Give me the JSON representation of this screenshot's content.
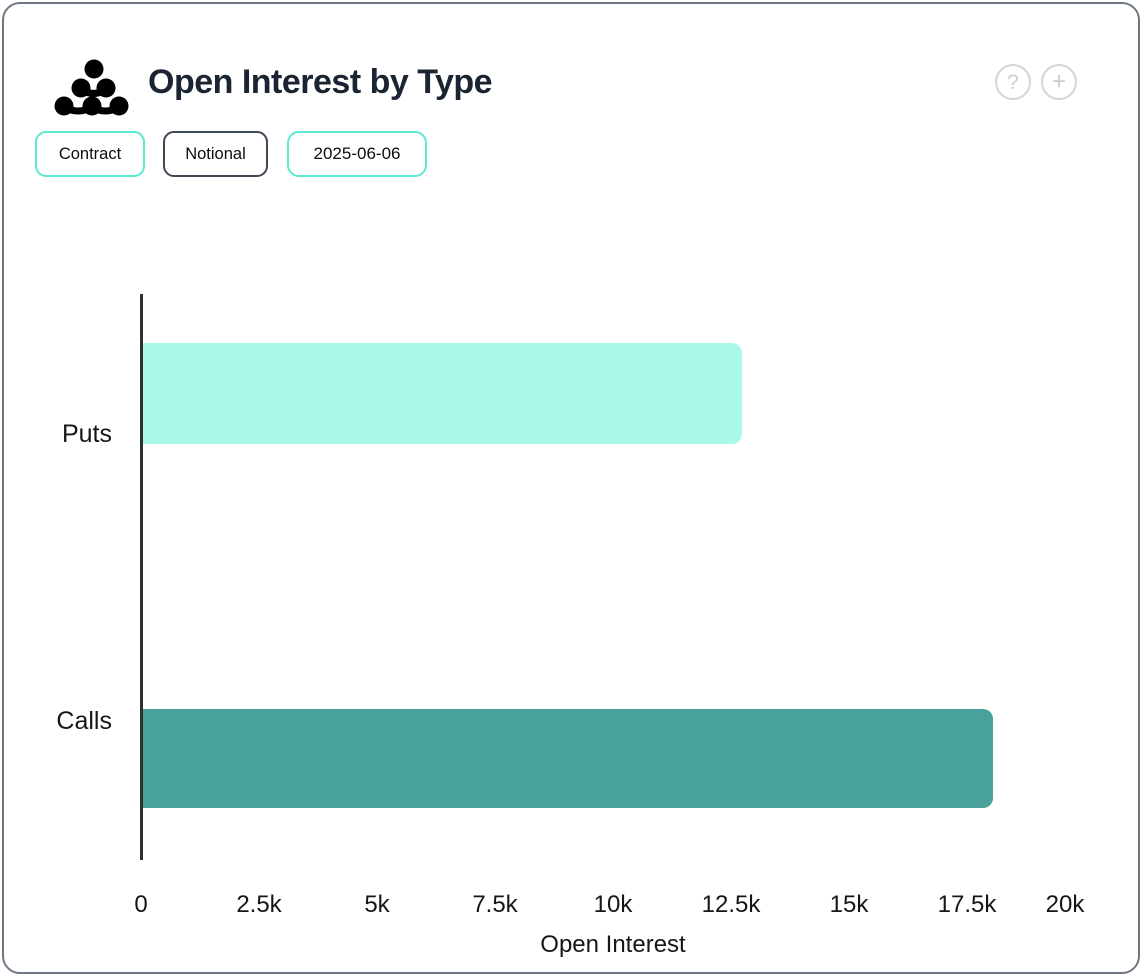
{
  "header": {
    "title": "Open Interest by Type",
    "help_glyph": "?",
    "plus_glyph": "+"
  },
  "toolbar": {
    "contract_label": "Contract",
    "notional_label": "Notional",
    "date_label": "2025-06-06"
  },
  "colors": {
    "accent_teal_border": "#5ce9d1",
    "dark_pill_border": "#3f4857",
    "puts_bar": "#a9f9e9",
    "calls_bar": "#48a29b",
    "title_text": "#1b2433",
    "icon_gray": "#d4d4d4",
    "axis_line": "#2f2f2f",
    "frame_border": "#6f7785"
  },
  "chart_data": {
    "type": "bar",
    "orientation": "horizontal",
    "categories": [
      "Puts",
      "Calls"
    ],
    "values": [
      12700,
      18000
    ],
    "series_colors": [
      "#a9f9e9",
      "#48a29b"
    ],
    "title": "Open Interest by Type",
    "xlabel": "Open Interest",
    "ylabel": "",
    "xlim": [
      0,
      20000
    ],
    "xtick_labels": [
      "0",
      "2.5k",
      "5k",
      "7.5k",
      "10k",
      "12.5k",
      "15k",
      "17.5k",
      "20k"
    ],
    "xtick_values": [
      0,
      2500,
      5000,
      7500,
      10000,
      12500,
      15000,
      17500,
      20000
    ],
    "grid": false,
    "legend": "none"
  }
}
